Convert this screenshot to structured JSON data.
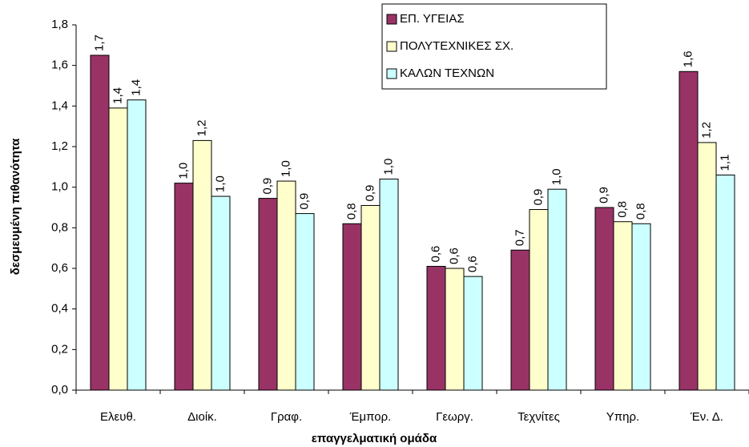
{
  "chart_data": {
    "type": "bar",
    "y_label": "δεσμευμένη πιθανότητα",
    "x_label": "επαγγελματική ομάδα",
    "categories": [
      "Ελευθ.",
      "Διοίκ.",
      "Γραφ.",
      "Έμπορ.",
      "Γεωργ.",
      "Τεχνίτες",
      "Υπηρ.",
      "Έν. Δ."
    ],
    "series": [
      {
        "name": "ΕΠ. ΥΓΕΙΑΣ",
        "color": "#993366",
        "values": [
          1.65,
          1.02,
          0.945,
          0.82,
          0.61,
          0.69,
          0.9,
          1.57
        ],
        "value_labels": [
          "1,7",
          "1,0",
          "0,9",
          "0,8",
          "0,6",
          "0,7",
          "0,9",
          "1,6"
        ]
      },
      {
        "name": "ΠΟΛΥΤΕΧΝΙΚΕΣ ΣΧ.",
        "color": "#ffffcc",
        "values": [
          1.39,
          1.23,
          1.03,
          0.91,
          0.6,
          0.89,
          0.83,
          1.22
        ],
        "value_labels": [
          "1,4",
          "1,2",
          "1,0",
          "0,9",
          "0,6",
          "0,9",
          "0,8",
          "1,2"
        ]
      },
      {
        "name": "ΚΑΛΩΝ ΤΕΧΝΩΝ",
        "color": "#ccffff",
        "values": [
          1.43,
          0.955,
          0.87,
          1.04,
          0.56,
          0.99,
          0.82,
          1.06
        ],
        "value_labels": [
          "1,4",
          "1,0",
          "0,9",
          "1,0",
          "0,6",
          "1,0",
          "0,8",
          "1,1"
        ]
      }
    ],
    "ylim": [
      0,
      1.8
    ],
    "yticks": [
      {
        "value": 0,
        "label": "0,0"
      },
      {
        "value": 0.2,
        "label": "0,2"
      },
      {
        "value": 0.4,
        "label": "0,4"
      },
      {
        "value": 0.6,
        "label": "0,6"
      },
      {
        "value": 0.8,
        "label": "0,8"
      },
      {
        "value": 1.0,
        "label": "1,0"
      },
      {
        "value": 1.2,
        "label": "1,2"
      },
      {
        "value": 1.4,
        "label": "1,4"
      },
      {
        "value": 1.6,
        "label": "1,6"
      },
      {
        "value": 1.8,
        "label": "1,8"
      }
    ],
    "grid": false,
    "legend": "top"
  }
}
